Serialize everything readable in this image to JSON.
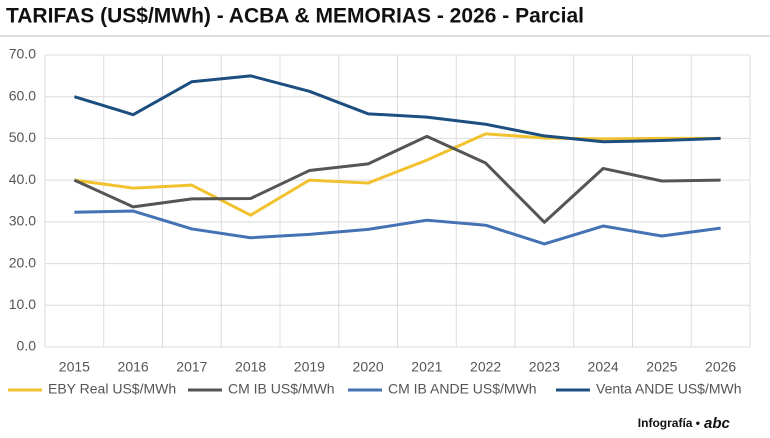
{
  "chart_data": {
    "type": "line",
    "title": "TARIFAS (US$/MWh) - ACBA & MEMORIAS - 2026 - Parcial",
    "categories": [
      "2015",
      "2016",
      "2017",
      "2018",
      "2019",
      "2020",
      "2021",
      "2022",
      "2023",
      "2024",
      "2025",
      "2026"
    ],
    "series": [
      {
        "name": "EBY Real US$/MWh",
        "color": "#f2c12e",
        "values": [
          40.0,
          38.1,
          38.8,
          31.6,
          40.0,
          39.3,
          44.8,
          51.1,
          50.1,
          49.9,
          50.0,
          50.0
        ]
      },
      {
        "name": "CM IB US$/MWh",
        "color": "#555555",
        "values": [
          40.0,
          33.6,
          35.5,
          35.6,
          42.3,
          43.9,
          50.5,
          44.1,
          29.9,
          42.8,
          39.8,
          40.0
        ]
      },
      {
        "name": "CM IB ANDE US$/MWh",
        "color": "#4472b4",
        "values": [
          32.3,
          32.6,
          28.3,
          26.2,
          27.0,
          28.2,
          30.4,
          29.2,
          24.7,
          29.0,
          26.6,
          28.5
        ]
      },
      {
        "name": "Venta ANDE US$/MWh",
        "color": "#1c4f7f",
        "values": [
          60.0,
          55.7,
          63.6,
          65.0,
          61.3,
          55.9,
          55.1,
          53.4,
          50.6,
          49.2,
          49.5,
          50.0
        ]
      }
    ],
    "ylim": [
      0,
      70
    ],
    "yticks": [
      {
        "value": 0,
        "label": "0.0"
      },
      {
        "value": 10,
        "label": "10.0"
      },
      {
        "value": 20,
        "label": "20.0"
      },
      {
        "value": 30,
        "label": "30.0"
      },
      {
        "value": 40,
        "label": "40.0"
      },
      {
        "value": 50,
        "label": "50.0"
      },
      {
        "value": 60,
        "label": "60.0"
      },
      {
        "value": 70,
        "label": "70.0"
      }
    ],
    "grid": true,
    "legend": "bottom",
    "footer": {
      "credit": "Infografía •",
      "logo": "abc"
    }
  }
}
